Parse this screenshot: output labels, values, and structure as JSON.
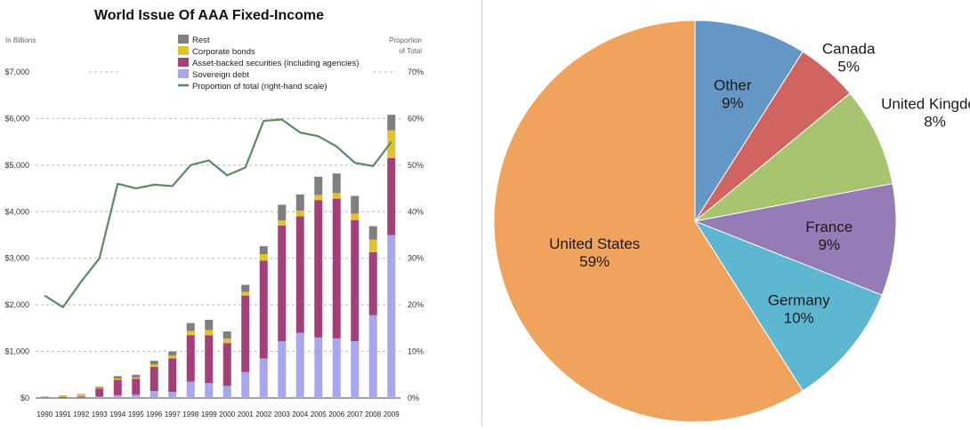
{
  "chart_data": [
    {
      "type": "bar",
      "title": "World Issue Of AAA Fixed-Income",
      "ylabel_left": "In Billions",
      "ylabel_right": "Proportion of Total",
      "ylabel_right_lines": [
        "Proportion",
        "of Total"
      ],
      "stacked": true,
      "grid": true,
      "legend_position": "top-center",
      "categories": [
        "1990",
        "1991",
        "1992",
        "1993",
        "1994",
        "1995",
        "1996",
        "1997",
        "1998",
        "1999",
        "2000",
        "2001",
        "2002",
        "2003",
        "2004",
        "2005",
        "2006",
        "2007",
        "2008",
        "2009"
      ],
      "y_left": {
        "range": [
          0,
          7000
        ],
        "ticks": [
          0,
          1000,
          2000,
          3000,
          4000,
          5000,
          6000,
          7000
        ],
        "tick_labels": [
          "$0",
          "$1,000",
          "$2,000",
          "$3,000",
          "$4,000",
          "$5,000",
          "$6,000",
          "$7,000"
        ]
      },
      "y_right": {
        "range": [
          0,
          70
        ],
        "ticks": [
          0,
          10,
          20,
          30,
          40,
          50,
          60,
          70
        ],
        "tick_labels": [
          "0%",
          "10%",
          "20%",
          "30%",
          "40%",
          "50%",
          "60%",
          "70%"
        ]
      },
      "series": [
        {
          "name": "Sovereign debt",
          "color": "#a9a6f0",
          "values": [
            5,
            5,
            10,
            30,
            60,
            70,
            150,
            130,
            350,
            320,
            260,
            560,
            850,
            1220,
            1400,
            1300,
            1280,
            1220,
            1780,
            3500
          ]
        },
        {
          "name": "Asset-backed securities (including agencies)",
          "color": "#a43f78",
          "values": [
            10,
            15,
            25,
            170,
            330,
            340,
            520,
            720,
            1000,
            1030,
            920,
            1640,
            2100,
            2480,
            2500,
            2950,
            3000,
            2600,
            1350,
            1650
          ]
        },
        {
          "name": "Corporate bonds",
          "color": "#e2c42a",
          "values": [
            5,
            25,
            40,
            20,
            30,
            30,
            50,
            60,
            90,
            110,
            100,
            80,
            140,
            110,
            120,
            110,
            120,
            140,
            270,
            600
          ]
        },
        {
          "name": "Rest",
          "color": "#7f7f7f",
          "values": [
            10,
            10,
            10,
            20,
            50,
            60,
            80,
            90,
            170,
            220,
            150,
            150,
            170,
            340,
            350,
            390,
            420,
            380,
            290,
            330
          ]
        }
      ],
      "line_series": {
        "name": "Proportion of total (right-hand scale)",
        "color": "#5a8a64",
        "axis": "right",
        "values": [
          22,
          19.5,
          25,
          30,
          46,
          45,
          45.8,
          45.5,
          50,
          51,
          47.8,
          49.5,
          59.5,
          59.8,
          57,
          56.2,
          54,
          50.5,
          49.8,
          55
        ]
      },
      "legend_order": [
        "Rest",
        "Corporate bonds",
        "Asset-backed securities (including agencies)",
        "Sovereign debt",
        "Proportion of total (right-hand scale)"
      ]
    },
    {
      "type": "pie",
      "title": "",
      "slices": [
        {
          "label": "Other",
          "value": 9,
          "value_label": "9%",
          "color": "#6597c6"
        },
        {
          "label": "Canada",
          "value": 5,
          "value_label": "5%",
          "color": "#cf6460"
        },
        {
          "label": "United Kingdom",
          "value": 8,
          "value_label": "8%",
          "color": "#a8c46f"
        },
        {
          "label": "France",
          "value": 9,
          "value_label": "9%",
          "color": "#957cb7"
        },
        {
          "label": "Germany",
          "value": 10,
          "value_label": "10%",
          "color": "#5db7d1"
        },
        {
          "label": "United States",
          "value": 59,
          "value_label": "59%",
          "color": "#f0a35d"
        }
      ]
    }
  ]
}
